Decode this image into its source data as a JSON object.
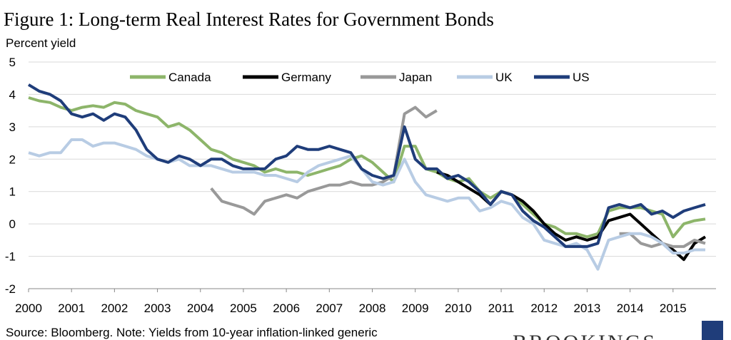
{
  "chart_data": {
    "type": "line",
    "title": "Figure 1: Long-term Real Interest Rates for Government Bonds",
    "y_label": "Percent yield",
    "source": "Source: Bloomberg. Note: Yields from 10-year inflation-linked generic",
    "logo": "BROOKINGS",
    "xlim": [
      2000,
      2016
    ],
    "xticks": [
      2000,
      2001,
      2002,
      2003,
      2004,
      2005,
      2006,
      2007,
      2008,
      2009,
      2010,
      2011,
      2012,
      2013,
      2014,
      2015
    ],
    "ylim": [
      -2,
      5
    ],
    "yticks": [
      -2,
      -1,
      0,
      1,
      2,
      3,
      4,
      5
    ],
    "grid": true,
    "legend": "top",
    "x": [
      2000,
      2000.25,
      2000.5,
      2000.75,
      2001,
      2001.25,
      2001.5,
      2001.75,
      2002,
      2002.25,
      2002.5,
      2002.75,
      2003,
      2003.25,
      2003.5,
      2003.75,
      2004,
      2004.25,
      2004.5,
      2004.75,
      2005,
      2005.25,
      2005.5,
      2005.75,
      2006,
      2006.25,
      2006.5,
      2006.75,
      2007,
      2007.25,
      2007.5,
      2007.75,
      2008,
      2008.25,
      2008.5,
      2008.75,
      2009,
      2009.25,
      2009.5,
      2009.75,
      2010,
      2010.25,
      2010.5,
      2010.75,
      2011,
      2011.25,
      2011.5,
      2011.75,
      2012,
      2012.25,
      2012.5,
      2012.75,
      2013,
      2013.25,
      2013.5,
      2013.75,
      2014,
      2014.25,
      2014.5,
      2014.75,
      2015,
      2015.25,
      2015.5,
      2015.75
    ],
    "series": [
      {
        "name": "Canada",
        "color": "#8db56a",
        "values": [
          3.9,
          3.8,
          3.75,
          3.6,
          3.5,
          3.6,
          3.65,
          3.6,
          3.75,
          3.7,
          3.5,
          3.4,
          3.3,
          3.0,
          3.1,
          2.9,
          2.6,
          2.3,
          2.2,
          2.0,
          1.9,
          1.8,
          1.6,
          1.7,
          1.6,
          1.6,
          1.5,
          1.6,
          1.7,
          1.8,
          2.0,
          2.1,
          1.9,
          1.6,
          1.3,
          2.4,
          2.4,
          1.7,
          1.6,
          1.4,
          1.3,
          1.4,
          1.0,
          0.8,
          1.0,
          0.9,
          0.6,
          0.3,
          0.0,
          -0.1,
          -0.3,
          -0.3,
          -0.4,
          -0.3,
          0.4,
          0.5,
          0.5,
          0.5,
          0.4,
          0.3,
          -0.4,
          0.0,
          0.1,
          0.15
        ]
      },
      {
        "name": "Germany",
        "color": "#000000",
        "values": [
          null,
          null,
          null,
          null,
          null,
          null,
          null,
          null,
          null,
          null,
          null,
          null,
          null,
          null,
          null,
          null,
          null,
          null,
          null,
          null,
          null,
          null,
          null,
          null,
          null,
          null,
          null,
          null,
          null,
          null,
          null,
          null,
          null,
          null,
          null,
          null,
          null,
          null,
          1.6,
          1.5,
          1.3,
          1.1,
          0.9,
          0.6,
          1.0,
          0.9,
          0.7,
          0.4,
          0.0,
          -0.3,
          -0.5,
          -0.4,
          -0.5,
          -0.4,
          0.1,
          0.2,
          0.3,
          0.0,
          -0.3,
          -0.6,
          -0.8,
          -1.1,
          -0.6,
          -0.4
        ]
      },
      {
        "name": "Japan",
        "color": "#999999",
        "values": [
          null,
          null,
          null,
          null,
          null,
          null,
          null,
          null,
          null,
          null,
          null,
          null,
          null,
          null,
          null,
          null,
          null,
          1.1,
          0.7,
          0.6,
          0.5,
          0.3,
          0.7,
          0.8,
          0.9,
          0.8,
          1.0,
          1.1,
          1.2,
          1.2,
          1.3,
          1.2,
          1.2,
          1.3,
          1.5,
          3.4,
          3.6,
          3.3,
          3.5,
          null,
          null,
          null,
          null,
          null,
          null,
          null,
          null,
          null,
          null,
          null,
          null,
          null,
          null,
          null,
          null,
          -0.3,
          -0.3,
          -0.6,
          -0.7,
          -0.6,
          -0.7,
          -0.7,
          -0.5,
          -0.6
        ]
      },
      {
        "name": "UK",
        "color": "#b8cce4",
        "values": [
          2.2,
          2.1,
          2.2,
          2.2,
          2.6,
          2.6,
          2.4,
          2.5,
          2.5,
          2.4,
          2.3,
          2.1,
          2.0,
          1.9,
          2.0,
          1.8,
          1.8,
          1.8,
          1.7,
          1.6,
          1.6,
          1.6,
          1.5,
          1.5,
          1.4,
          1.3,
          1.6,
          1.8,
          1.9,
          2.0,
          2.1,
          1.7,
          1.3,
          1.2,
          1.3,
          2.0,
          1.3,
          0.9,
          0.8,
          0.7,
          0.8,
          0.8,
          0.4,
          0.5,
          0.7,
          0.6,
          0.2,
          0.0,
          -0.5,
          -0.6,
          -0.7,
          -0.6,
          -0.8,
          -1.4,
          -0.5,
          -0.4,
          -0.3,
          -0.3,
          -0.4,
          -0.6,
          -0.9,
          -0.9,
          -0.8,
          -0.8
        ]
      },
      {
        "name": "US",
        "color": "#1f3d7a",
        "values": [
          4.3,
          4.1,
          4.0,
          3.8,
          3.4,
          3.3,
          3.4,
          3.2,
          3.4,
          3.3,
          2.9,
          2.3,
          2.0,
          1.9,
          2.1,
          2.0,
          1.8,
          2.0,
          2.0,
          1.8,
          1.7,
          1.7,
          1.7,
          2.0,
          2.1,
          2.4,
          2.3,
          2.3,
          2.4,
          2.3,
          2.2,
          1.7,
          1.5,
          1.4,
          1.5,
          3.0,
          2.0,
          1.7,
          1.7,
          1.4,
          1.5,
          1.3,
          1.0,
          0.6,
          1.0,
          0.9,
          0.4,
          0.1,
          -0.1,
          -0.4,
          -0.7,
          -0.7,
          -0.7,
          -0.6,
          0.5,
          0.6,
          0.5,
          0.6,
          0.3,
          0.4,
          0.2,
          0.4,
          0.5,
          0.6
        ]
      }
    ]
  }
}
